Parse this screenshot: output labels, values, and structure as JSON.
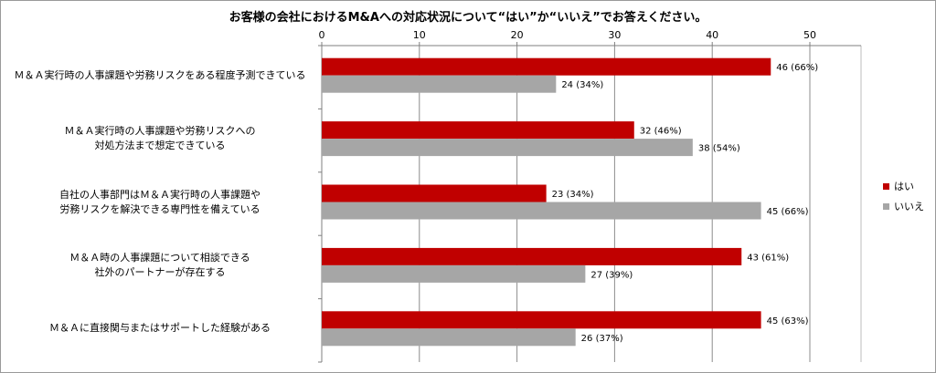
{
  "chart_data": {
    "type": "bar",
    "orientation": "horizontal",
    "title": "お客様の会社におけるM&Aへの対応状況について“はい”か“いいえ”でお答えください。",
    "categories": [
      "Ｍ＆Ａ実行時の人事課題や労務リスクをある程度予測できている",
      "Ｍ＆Ａ実行時の人事課題や労務リスクへの\n対処方法まで想定できている",
      "自社の人事部門はＭ＆Ａ実行時の人事課題や\n労務リスクを解決できる専門性を備えている",
      "Ｍ＆Ａ時の人事課題について相談できる\n社外のパートナーが存在する",
      "Ｍ＆Ａに直接関与またはサポートした経験がある"
    ],
    "series": [
      {
        "name": "はい",
        "color": "#c00000",
        "values": [
          46,
          32,
          23,
          43,
          45
        ],
        "labels": [
          "46 (66%)",
          "32 (46%)",
          "23 (34%)",
          "43 (61%)",
          "45 (63%)"
        ]
      },
      {
        "name": "いいえ",
        "color": "#a6a6a6",
        "values": [
          24,
          38,
          45,
          27,
          26
        ],
        "labels": [
          "24 (34%)",
          "38 (54%)",
          "45 (66%)",
          "27 (39%)",
          "26 (37%)"
        ]
      }
    ],
    "xlim": [
      0,
      50
    ],
    "xticks": [
      0,
      10,
      20,
      30,
      40,
      50
    ],
    "grid": true,
    "legend_position": "right"
  }
}
